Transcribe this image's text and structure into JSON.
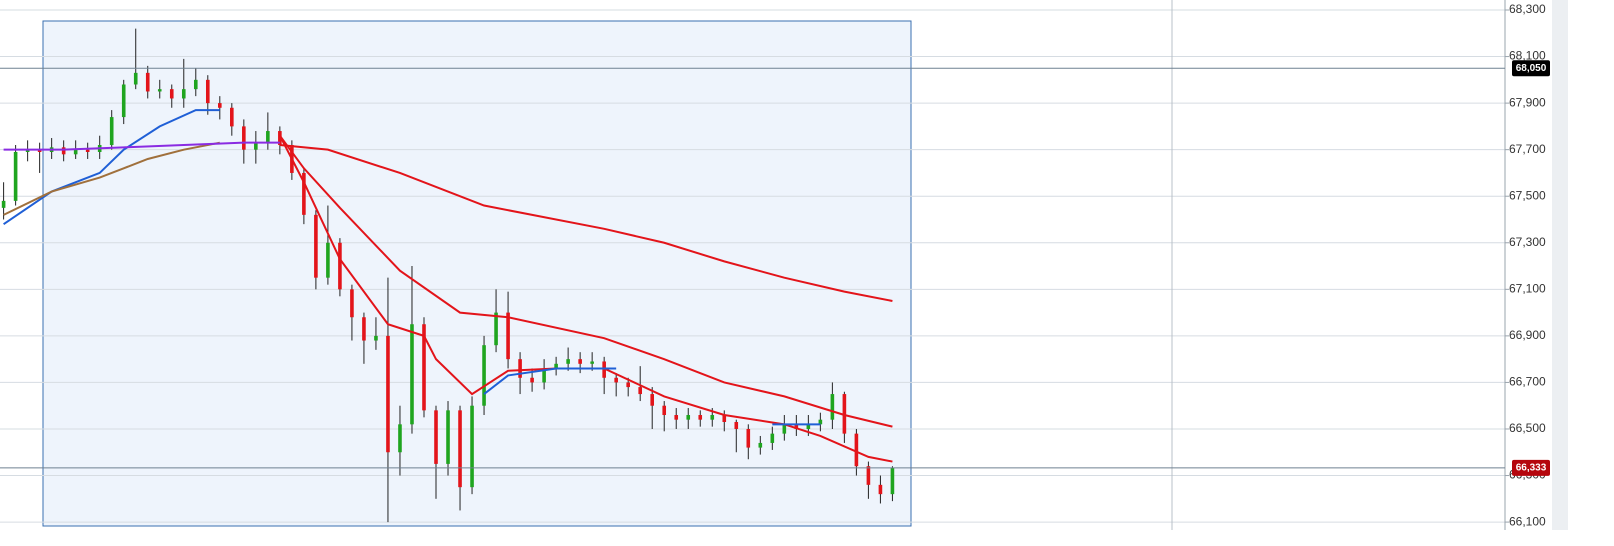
{
  "chart_data": {
    "type": "candlestick",
    "xlim": [
      -0.3,
      125
    ],
    "ylim": [
      66066,
      68343
    ],
    "yticks": [
      {
        "value": 66100,
        "label": "66,100"
      },
      {
        "value": 66300,
        "label": "66,300"
      },
      {
        "value": 66500,
        "label": "66,500"
      },
      {
        "value": 66700,
        "label": "66,700"
      },
      {
        "value": 66900,
        "label": "66,900"
      },
      {
        "value": 67100,
        "label": "67,100"
      },
      {
        "value": 67300,
        "label": "67,300"
      },
      {
        "value": 67500,
        "label": "67,500"
      },
      {
        "value": 67700,
        "label": "67,700"
      },
      {
        "value": 67900,
        "label": "67,900"
      },
      {
        "value": 68100,
        "label": "68,100"
      },
      {
        "value": 68300,
        "label": "68,300"
      }
    ],
    "grid": true,
    "up_color": "#1fa51f",
    "down_color": "#e3141a",
    "open": [
      67450,
      67480,
      67690,
      67700,
      67690,
      67710,
      67680,
      67700,
      67690,
      67720,
      67840,
      67980,
      68030,
      67950,
      67960,
      67920,
      67960,
      68000,
      67900,
      67880,
      67800,
      67700,
      67730,
      67780,
      67720,
      67600,
      67420,
      67150,
      67300,
      67100,
      66980,
      66880,
      66900,
      66400,
      66520,
      66950,
      66580,
      66350,
      66580,
      66250,
      66600,
      66860,
      67000,
      66800,
      66720,
      66700,
      66760,
      66780,
      66800,
      66780,
      66790,
      66720,
      66700,
      66680,
      66650,
      66600,
      66560,
      66540,
      66560,
      66540,
      66560,
      66530,
      66500,
      66420,
      66440,
      66480,
      66520,
      66500,
      66520,
      66540,
      66650,
      66480,
      66340,
      66260,
      66220
    ],
    "high": [
      67560,
      67720,
      67740,
      67730,
      67750,
      67740,
      67740,
      67730,
      67760,
      67870,
      68000,
      68220,
      68060,
      68000,
      67980,
      68090,
      68050,
      68020,
      67930,
      67900,
      67830,
      67780,
      67860,
      67800,
      67740,
      67620,
      67440,
      67460,
      67320,
      67120,
      67000,
      66980,
      67150,
      66600,
      67200,
      66980,
      66600,
      66620,
      66600,
      66640,
      66900,
      67100,
      67090,
      66830,
      66760,
      66800,
      66810,
      66850,
      66830,
      66830,
      66810,
      66740,
      66720,
      66770,
      66680,
      66620,
      66590,
      66590,
      66580,
      66590,
      66580,
      66540,
      66520,
      66470,
      66510,
      66560,
      66560,
      66560,
      66570,
      66700,
      66660,
      66500,
      66360,
      66300,
      66340
    ],
    "low": [
      67400,
      67460,
      67650,
      67600,
      67660,
      67650,
      67660,
      67660,
      67660,
      67700,
      67810,
      67960,
      67920,
      67920,
      67880,
      67880,
      67930,
      67850,
      67830,
      67760,
      67640,
      67640,
      67700,
      67680,
      67570,
      67380,
      67100,
      67120,
      67070,
      66880,
      66780,
      66840,
      66100,
      66300,
      66480,
      66550,
      66200,
      66300,
      66150,
      66220,
      66560,
      66830,
      66760,
      66650,
      66660,
      66670,
      66730,
      66750,
      66740,
      66750,
      66650,
      66640,
      66640,
      66620,
      66500,
      66490,
      66500,
      66500,
      66510,
      66510,
      66490,
      66400,
      66370,
      66390,
      66410,
      66450,
      66470,
      66470,
      66490,
      66500,
      66440,
      66300,
      66200,
      66180,
      66190
    ],
    "close": [
      67480,
      67690,
      67700,
      67690,
      67710,
      67680,
      67700,
      67690,
      67720,
      67840,
      67980,
      68030,
      67950,
      67960,
      67920,
      67960,
      68000,
      67900,
      67880,
      67800,
      67700,
      67730,
      67780,
      67720,
      67600,
      67420,
      67150,
      67300,
      67100,
      66980,
      66880,
      66900,
      66400,
      66520,
      66950,
      66580,
      66350,
      66580,
      66250,
      66600,
      66860,
      67000,
      66800,
      66720,
      66700,
      66760,
      66780,
      66800,
      66780,
      66790,
      66720,
      66700,
      66680,
      66650,
      66600,
      66560,
      66540,
      66560,
      66540,
      66560,
      66530,
      66500,
      66420,
      66440,
      66480,
      66520,
      66500,
      66520,
      66540,
      66650,
      66480,
      66340,
      66260,
      66220,
      66333
    ],
    "lines": [
      {
        "color": "#e3141a",
        "x": [
          23,
          27,
          33,
          40,
          50,
          55,
          60,
          65,
          70,
          74
        ],
        "values": [
          67720,
          67700,
          67600,
          67460,
          67360,
          67300,
          67220,
          67150,
          67090,
          67050
        ]
      },
      {
        "color": "#e3141a",
        "x": [
          23,
          25,
          28,
          33,
          38,
          42,
          50,
          55,
          60,
          65,
          70,
          74
        ],
        "values": [
          67760,
          67620,
          67450,
          67180,
          67000,
          66980,
          66890,
          66800,
          66700,
          66640,
          66560,
          66510
        ]
      },
      {
        "color": "#e3141a",
        "x": [
          23,
          25,
          28,
          32,
          35,
          36,
          39,
          42,
          46,
          50,
          55,
          60,
          65,
          68,
          72,
          74
        ],
        "values": [
          67760,
          67560,
          67230,
          66950,
          66900,
          66800,
          66650,
          66750,
          66760,
          66760,
          66640,
          66560,
          66520,
          66470,
          66380,
          66360
        ]
      },
      {
        "color": "#1f5fd6",
        "x": [
          0,
          4,
          8,
          10,
          13,
          16,
          18,
          30,
          40,
          42,
          46,
          51,
          60,
          64,
          68
        ],
        "values": [
          67380,
          67520,
          67600,
          67700,
          67800,
          67870,
          67870,
          null,
          66650,
          66730,
          66760,
          66760,
          null,
          66520,
          66520
        ]
      },
      {
        "color": "#a0703c",
        "x": [
          0,
          4,
          8,
          10,
          12,
          15,
          18
        ],
        "values": [
          67420,
          67520,
          67580,
          67620,
          67660,
          67700,
          67730
        ]
      },
      {
        "color": "#8a2be2",
        "x": [
          0,
          5,
          10,
          15,
          20,
          23
        ],
        "values": [
          67700,
          67700,
          67710,
          67720,
          67730,
          67730
        ]
      }
    ],
    "price_tags": [
      {
        "value": 68050,
        "label": "68,050",
        "color": "#000000"
      },
      {
        "value": 66333,
        "label": "66,333",
        "color": "#b5060d"
      }
    ]
  }
}
